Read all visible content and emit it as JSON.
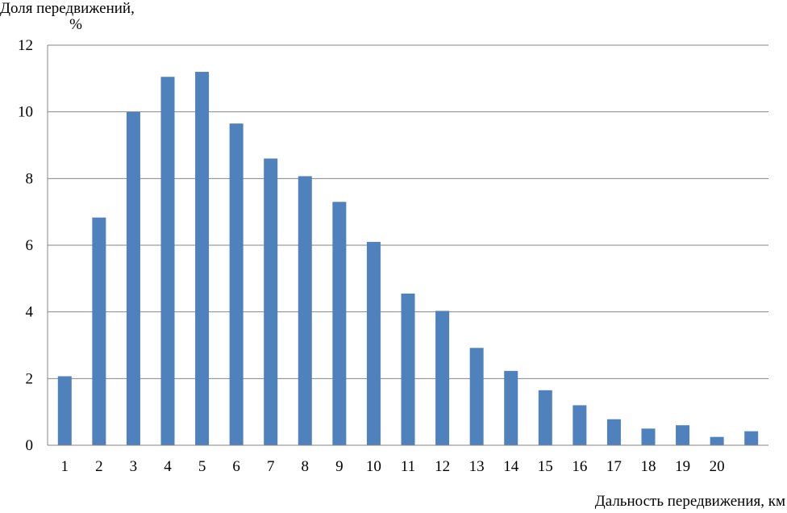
{
  "chart_data": {
    "type": "bar",
    "title": "",
    "ylabel_line1": "Доля передвижений,",
    "ylabel_line2": "%",
    "xlabel": "Дальность передвижения, км",
    "categories": [
      "1",
      "2",
      "3",
      "4",
      "5",
      "6",
      "7",
      "8",
      "9",
      "10",
      "11",
      "12",
      "13",
      "14",
      "15",
      "16",
      "17",
      "18",
      "19",
      "20",
      ""
    ],
    "values": [
      2.07,
      6.83,
      10.0,
      11.05,
      11.2,
      9.65,
      8.6,
      8.07,
      7.3,
      6.1,
      4.55,
      4.03,
      2.92,
      2.23,
      1.65,
      1.2,
      0.78,
      0.5,
      0.6,
      0.25,
      0.42
    ],
    "ylim": [
      0,
      12
    ],
    "yticks": [
      0,
      2,
      4,
      6,
      8,
      10,
      12
    ],
    "grid": true,
    "legend": "none",
    "colors": {
      "bar": "#4F81BD",
      "grid": "#868686",
      "axis": "#868686"
    }
  }
}
